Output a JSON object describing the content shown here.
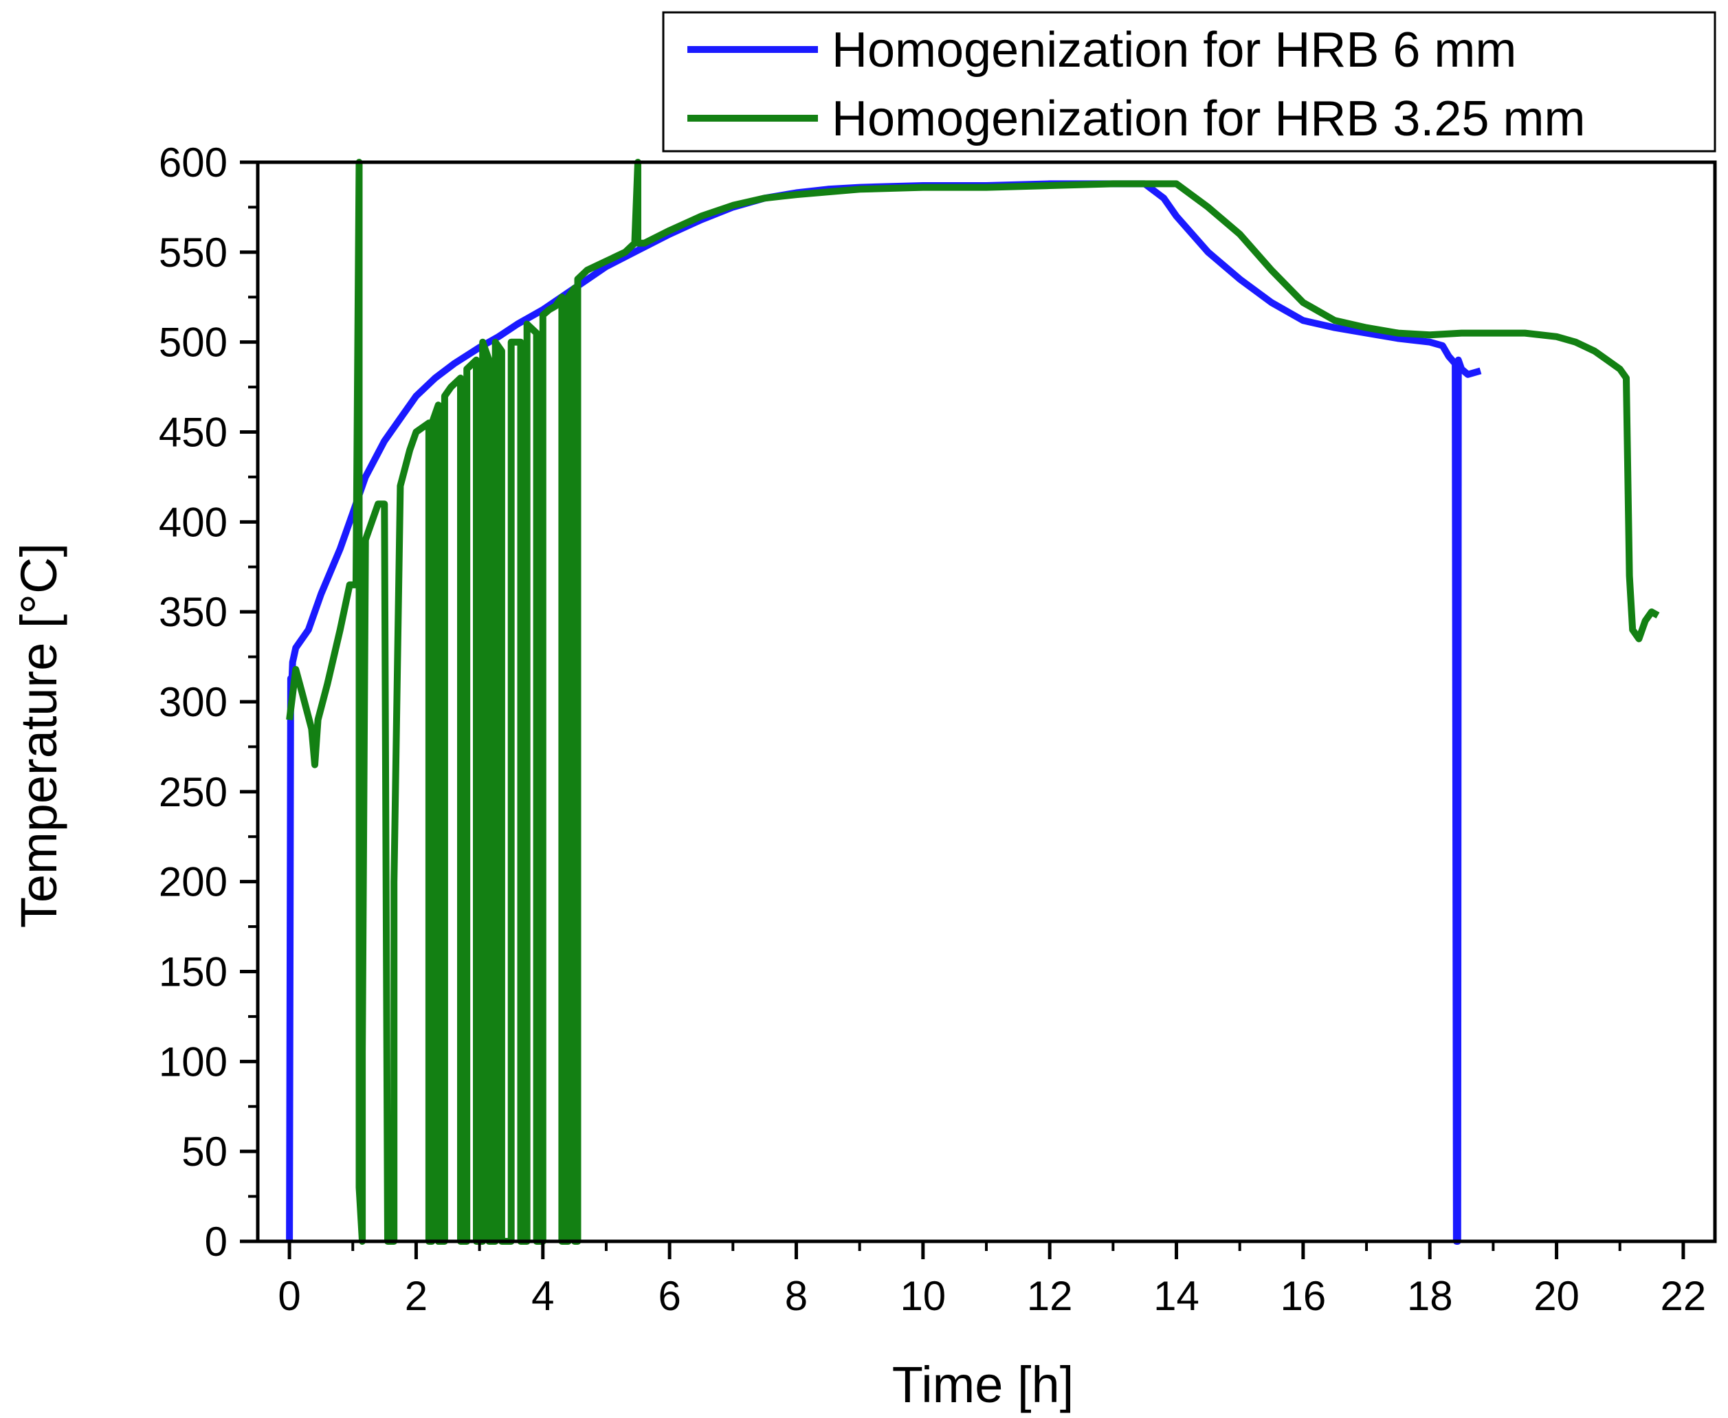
{
  "chart_data": {
    "type": "line",
    "xlabel": "Time [h]",
    "ylabel": "Temperature [°C]",
    "xlim": [
      -0.5,
      22.5
    ],
    "ylim": [
      0,
      600
    ],
    "x_ticks": [
      0,
      2,
      4,
      6,
      8,
      10,
      12,
      14,
      16,
      18,
      20,
      22
    ],
    "y_ticks": [
      0,
      50,
      100,
      150,
      200,
      250,
      300,
      350,
      400,
      450,
      500,
      550,
      600
    ],
    "grid": false,
    "legend_position": "top-right",
    "series": [
      {
        "name": "Homogenization for HRB 6 mm",
        "color": "#1a1aff",
        "x": [
          0.0,
          0.02,
          0.03,
          0.05,
          0.1,
          0.3,
          0.5,
          0.8,
          1.0,
          1.2,
          1.5,
          1.8,
          2.0,
          2.3,
          2.6,
          3.0,
          3.3,
          3.6,
          4.0,
          4.5,
          5.0,
          5.5,
          6.0,
          6.5,
          7.0,
          7.5,
          8.0,
          8.5,
          9.0,
          10.0,
          11.0,
          12.0,
          13.0,
          13.5,
          13.8,
          14.0,
          14.5,
          15.0,
          15.5,
          16.0,
          16.5,
          17.0,
          17.5,
          18.0,
          18.2,
          18.3,
          18.4,
          18.42,
          18.44,
          18.45,
          18.5,
          18.6,
          18.8
        ],
        "y": [
          0,
          313,
          305,
          322,
          330,
          340,
          360,
          385,
          405,
          425,
          445,
          460,
          470,
          480,
          488,
          497,
          503,
          510,
          518,
          530,
          542,
          551,
          560,
          568,
          575,
          580,
          583,
          585,
          586,
          587,
          587,
          588,
          588,
          588,
          580,
          570,
          550,
          535,
          522,
          512,
          508,
          505,
          502,
          500,
          498,
          492,
          488,
          0,
          0,
          490,
          485,
          482,
          484
        ]
      },
      {
        "name": "Homogenization for HRB 3.25 mm",
        "color": "#138013",
        "x": [
          0.0,
          0.1,
          0.2,
          0.35,
          0.4,
          0.45,
          0.6,
          0.8,
          0.95,
          1.05,
          1.1,
          1.1,
          1.15,
          1.15,
          1.2,
          1.25,
          1.3,
          1.4,
          1.5,
          1.55,
          1.55,
          1.65,
          1.65,
          1.75,
          1.9,
          2.0,
          2.2,
          2.2,
          2.25,
          2.25,
          2.35,
          2.35,
          2.45,
          2.45,
          2.55,
          2.7,
          2.7,
          2.8,
          2.8,
          2.95,
          2.95,
          3.05,
          3.05,
          3.15,
          3.15,
          3.25,
          3.25,
          3.35,
          3.35,
          3.5,
          3.5,
          3.65,
          3.65,
          3.75,
          3.75,
          3.9,
          3.9,
          4.0,
          4.0,
          4.1,
          4.2,
          4.3,
          4.3,
          4.4,
          4.4,
          4.5,
          4.5,
          4.55,
          4.55,
          4.7,
          5.0,
          5.3,
          5.45,
          5.5,
          5.5,
          5.6,
          6.0,
          6.5,
          7.0,
          7.5,
          8.0,
          9.0,
          10.0,
          11.0,
          12.0,
          13.0,
          14.0,
          14.5,
          15.0,
          15.5,
          16.0,
          16.5,
          17.0,
          17.5,
          18.0,
          18.5,
          19.0,
          19.5,
          20.0,
          20.3,
          20.6,
          20.8,
          21.0,
          21.1,
          21.15,
          21.2,
          21.3,
          21.4,
          21.5,
          21.6
        ],
        "y": [
          290,
          318,
          305,
          285,
          265,
          290,
          310,
          340,
          365,
          365,
          600,
          30,
          0,
          105,
          390,
          395,
          400,
          410,
          410,
          0,
          0,
          0,
          200,
          420,
          440,
          450,
          455,
          0,
          0,
          455,
          465,
          0,
          0,
          470,
          475,
          480,
          0,
          0,
          485,
          490,
          0,
          0,
          500,
          490,
          0,
          0,
          500,
          495,
          0,
          0,
          500,
          500,
          0,
          0,
          510,
          505,
          0,
          0,
          515,
          518,
          520,
          525,
          0,
          0,
          525,
          530,
          0,
          0,
          535,
          540,
          545,
          550,
          555,
          600,
          555,
          555,
          562,
          570,
          576,
          580,
          582,
          585,
          586,
          586,
          587,
          588,
          588,
          575,
          560,
          540,
          522,
          512,
          508,
          505,
          504,
          505,
          505,
          505,
          503,
          500,
          495,
          490,
          485,
          480,
          370,
          340,
          335,
          345,
          350,
          348
        ]
      }
    ]
  }
}
